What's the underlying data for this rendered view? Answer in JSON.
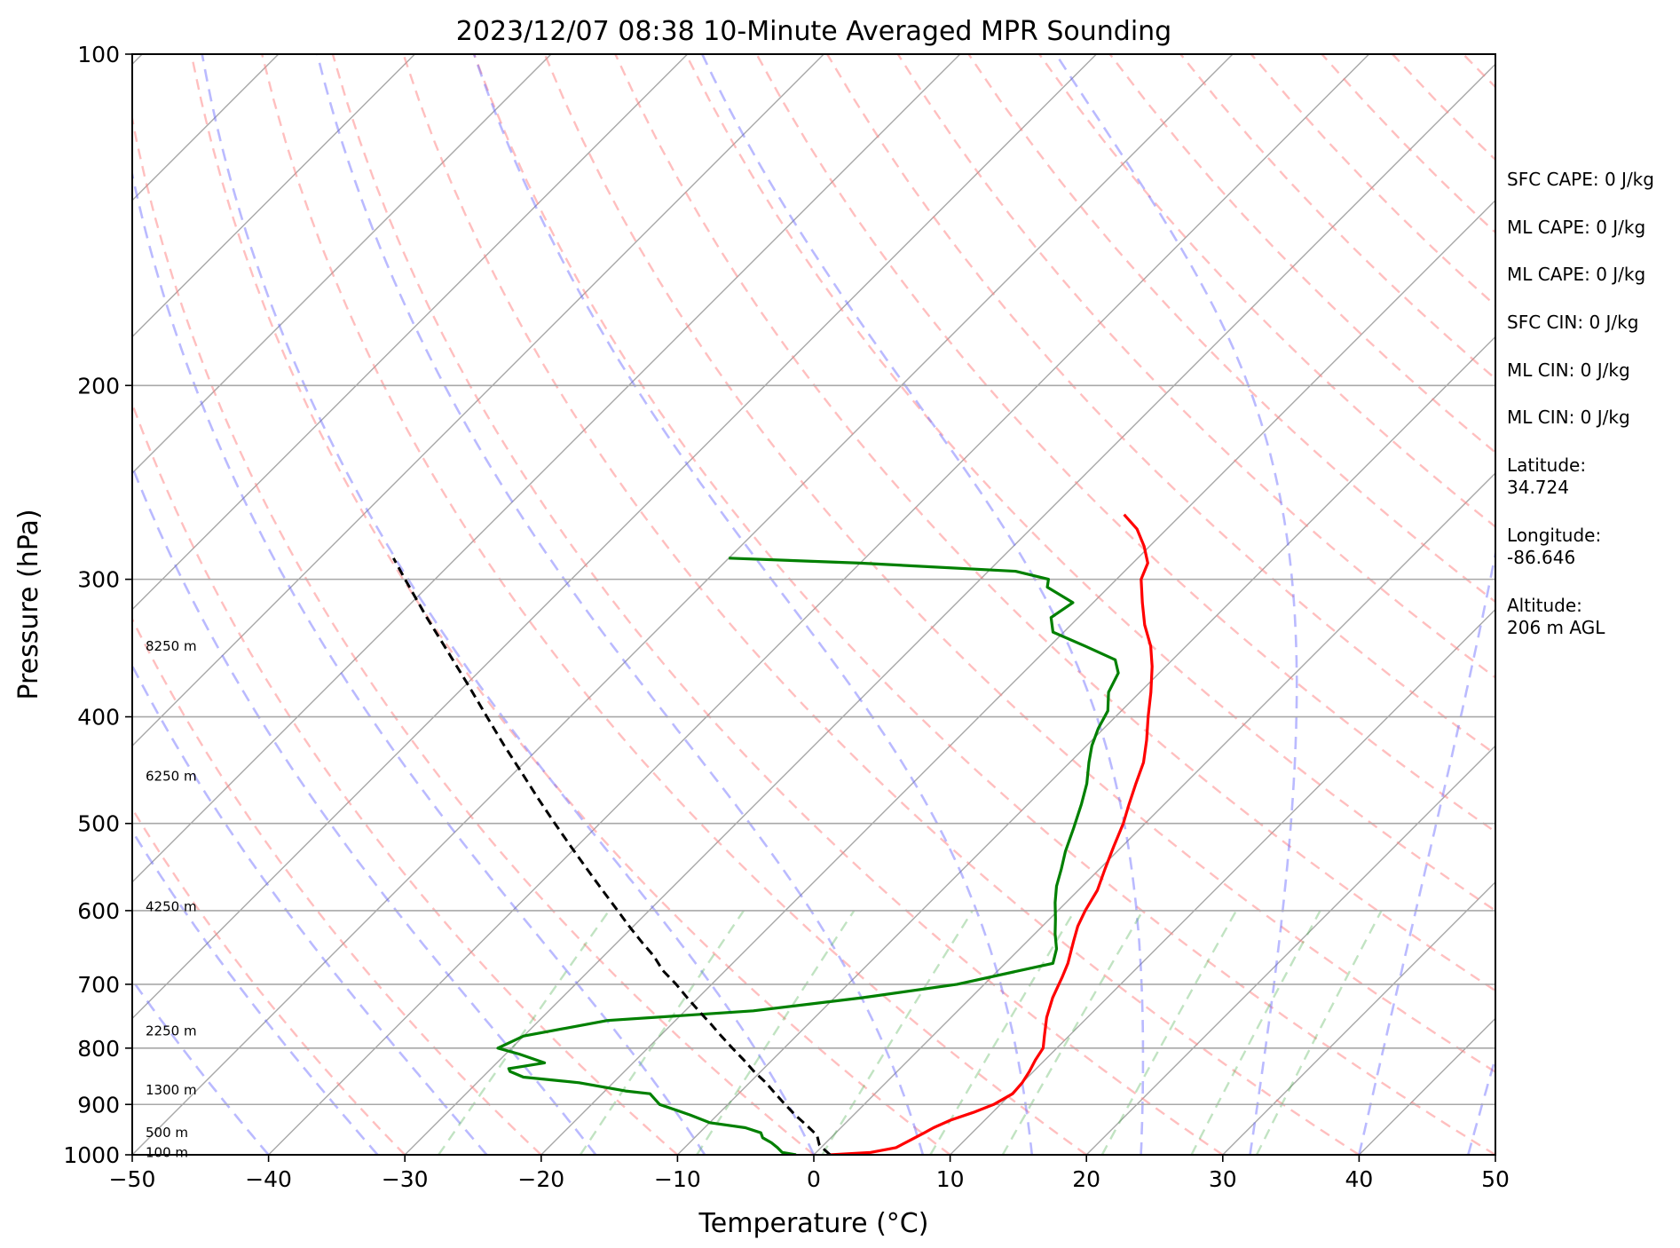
{
  "chart_data": {
    "type": "line",
    "title": "2023/12/07 08:38 10-Minute Averaged MPR Sounding",
    "xlabel": "Temperature (°C)",
    "ylabel": "Pressure (hPa)",
    "xlim": [
      -50,
      50
    ],
    "ylim": [
      1000,
      100
    ],
    "y_scale": "log",
    "skew": "skew-T log-P diagram",
    "x_ticks": [
      -50,
      -40,
      -30,
      -20,
      -10,
      0,
      10,
      20,
      30,
      40,
      50
    ],
    "x_tick_labels": [
      "−50",
      "−40",
      "−30",
      "−20",
      "−10",
      "0",
      "10",
      "20",
      "30",
      "40",
      "50"
    ],
    "y_ticks": [
      1000,
      900,
      800,
      700,
      600,
      500,
      400,
      300,
      200,
      100
    ],
    "y_tick_labels": [
      "1000",
      "900",
      "800",
      "700",
      "600",
      "500",
      "400",
      "300",
      "200",
      "100"
    ],
    "grid": true,
    "background_lines": {
      "isotherms": "gray solid",
      "dry_adiabats": "red dashed",
      "moist_adiabats": "blue dashed",
      "mixing_ratio": "green dashed"
    },
    "series": [
      {
        "type": "temperature",
        "color": "#ff0000",
        "points": [
          [
            1000,
            1.2
          ],
          [
            995,
            4.0
          ],
          [
            985,
            5.5
          ],
          [
            970,
            6.0
          ],
          [
            955,
            6.5
          ],
          [
            945,
            6.8
          ],
          [
            930,
            7.5
          ],
          [
            915,
            8.6
          ],
          [
            900,
            9.5
          ],
          [
            880,
            10.1
          ],
          [
            860,
            10.0
          ],
          [
            840,
            9.7
          ],
          [
            820,
            9.3
          ],
          [
            800,
            9.0
          ],
          [
            780,
            8.2
          ],
          [
            750,
            7.0
          ],
          [
            720,
            6.0
          ],
          [
            690,
            5.2
          ],
          [
            670,
            4.6
          ],
          [
            640,
            3.4
          ],
          [
            620,
            2.6
          ],
          [
            600,
            2.0
          ],
          [
            575,
            1.4
          ],
          [
            550,
            0.4
          ],
          [
            525,
            -0.6
          ],
          [
            500,
            -1.6
          ],
          [
            480,
            -2.6
          ],
          [
            460,
            -3.6
          ],
          [
            440,
            -4.6
          ],
          [
            420,
            -6.0
          ],
          [
            400,
            -7.6
          ],
          [
            380,
            -9.2
          ],
          [
            360,
            -11.0
          ],
          [
            345,
            -12.6
          ],
          [
            330,
            -14.6
          ],
          [
            315,
            -16.4
          ],
          [
            300,
            -18.2
          ],
          [
            290,
            -18.9
          ],
          [
            280,
            -20.4
          ],
          [
            270,
            -22.2
          ],
          [
            262,
            -24.2
          ]
        ]
      },
      {
        "type": "dewpoint",
        "color": "#008000",
        "points": [
          [
            1000,
            -1.3
          ],
          [
            995,
            -2.5
          ],
          [
            985,
            -3.2
          ],
          [
            975,
            -4.0
          ],
          [
            965,
            -5.0
          ],
          [
            955,
            -5.5
          ],
          [
            945,
            -7.0
          ],
          [
            935,
            -10.0
          ],
          [
            920,
            -12.0
          ],
          [
            900,
            -15.0
          ],
          [
            880,
            -16.5
          ],
          [
            875,
            -18.5
          ],
          [
            860,
            -22.5
          ],
          [
            850,
            -27.0
          ],
          [
            840,
            -28.4
          ],
          [
            835,
            -28.7
          ],
          [
            825,
            -26.5
          ],
          [
            810,
            -29.0
          ],
          [
            800,
            -31.0
          ],
          [
            780,
            -30.0
          ],
          [
            755,
            -25.0
          ],
          [
            740,
            -15.0
          ],
          [
            720,
            -8.0
          ],
          [
            700,
            -2.0
          ],
          [
            670,
            3.5
          ],
          [
            650,
            2.7
          ],
          [
            630,
            1.5
          ],
          [
            610,
            0.4
          ],
          [
            590,
            -0.8
          ],
          [
            570,
            -1.9
          ],
          [
            550,
            -2.8
          ],
          [
            530,
            -3.8
          ],
          [
            505,
            -4.9
          ],
          [
            480,
            -6.1
          ],
          [
            460,
            -7.2
          ],
          [
            440,
            -8.6
          ],
          [
            425,
            -9.6
          ],
          [
            410,
            -10.4
          ],
          [
            395,
            -11.0
          ],
          [
            380,
            -12.3
          ],
          [
            365,
            -13.0
          ],
          [
            355,
            -14.2
          ],
          [
            345,
            -17.4
          ],
          [
            335,
            -20.8
          ],
          [
            325,
            -22.0
          ],
          [
            315,
            -21.5
          ],
          [
            305,
            -24.5
          ],
          [
            300,
            -25.0
          ],
          [
            295,
            -28.0
          ],
          [
            290,
            -40.0
          ],
          [
            287,
            -50.0
          ]
        ]
      },
      {
        "type": "parcel",
        "color": "#000000",
        "style": "dashed",
        "points": [
          [
            1000,
            1.2
          ],
          [
            980,
            -0.3
          ],
          [
            960,
            -1.2
          ],
          [
            940,
            -2.7
          ],
          [
            920,
            -4.3
          ],
          [
            900,
            -5.8
          ],
          [
            880,
            -7.3
          ],
          [
            860,
            -8.8
          ],
          [
            840,
            -10.5
          ],
          [
            820,
            -12.1
          ],
          [
            800,
            -13.8
          ],
          [
            780,
            -15.5
          ],
          [
            760,
            -17.2
          ],
          [
            740,
            -19.0
          ],
          [
            720,
            -20.8
          ],
          [
            700,
            -22.6
          ],
          [
            680,
            -24.6
          ],
          [
            660,
            -26.3
          ],
          [
            640,
            -28.3
          ],
          [
            620,
            -30.3
          ],
          [
            600,
            -32.3
          ],
          [
            575,
            -34.9
          ],
          [
            550,
            -37.6
          ],
          [
            525,
            -40.4
          ],
          [
            500,
            -43.3
          ],
          [
            475,
            -46.3
          ],
          [
            450,
            -49.4
          ],
          [
            425,
            -52.7
          ],
          [
            400,
            -56.1
          ],
          [
            375,
            -59.7
          ],
          [
            350,
            -63.6
          ],
          [
            325,
            -67.8
          ],
          [
            300,
            -72.2
          ],
          [
            287,
            -74.6
          ]
        ]
      }
    ],
    "height_labels": [
      {
        "pressure": 345,
        "text": "8250 m"
      },
      {
        "pressure": 453,
        "text": "6250 m"
      },
      {
        "pressure": 595,
        "text": "4250 m"
      },
      {
        "pressure": 772,
        "text": "2250 m"
      },
      {
        "pressure": 873,
        "text": "1300 m"
      },
      {
        "pressure": 955,
        "text": "500 m"
      },
      {
        "pressure": 995,
        "text": "100 m"
      }
    ],
    "annotations": [
      "SFC CAPE: 0 J/kg",
      "ML CAPE: 0 J/kg",
      "ML CAPE: 0 J/kg",
      "SFC CIN: 0 J/kg",
      "ML CIN: 0 J/kg",
      "ML CIN: 0 J/kg",
      "Latitude:",
      "34.724",
      "Longitude:",
      "-86.646",
      "Altitude:",
      "206 m AGL"
    ]
  }
}
